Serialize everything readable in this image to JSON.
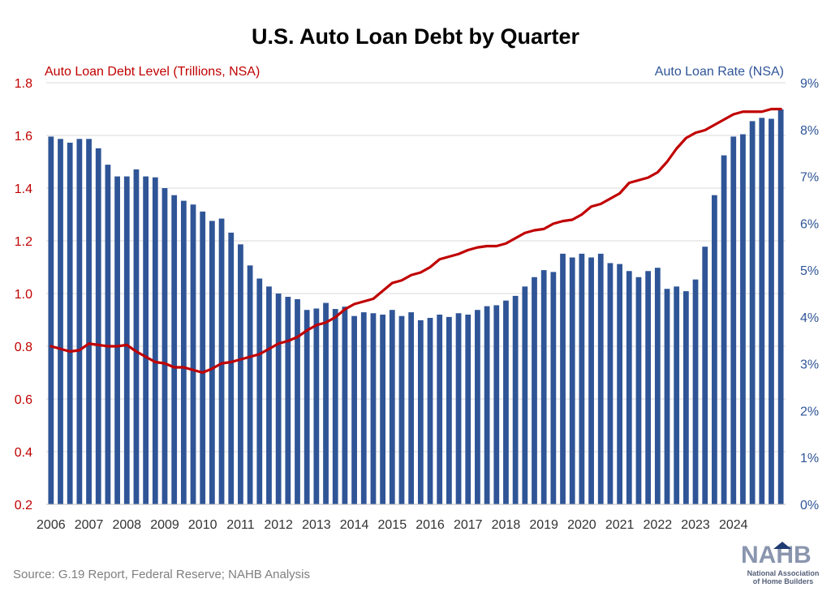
{
  "chart_data": {
    "type": "bar+line",
    "title": "U.S. Auto Loan Debt by Quarter",
    "left_axis_label": "Auto Loan Debt Level (Trillions, NSA)",
    "right_axis_label": "Auto Loan Rate (NSA)",
    "source": "Source: G.19 Report, Federal Reserve; NAHB Analysis",
    "x_ticks": [
      "2006",
      "2007",
      "2008",
      "2009",
      "2010",
      "2011",
      "2012",
      "2013",
      "2014",
      "2015",
      "2016",
      "2017",
      "2018",
      "2019",
      "2020",
      "2021",
      "2022",
      "2023",
      "2024"
    ],
    "left_ticks": [
      "0.2",
      "0.4",
      "0.6",
      "0.8",
      "1.0",
      "1.2",
      "1.4",
      "1.6",
      "1.8"
    ],
    "right_ticks": [
      "0%",
      "1%",
      "2%",
      "3%",
      "4%",
      "5%",
      "6%",
      "7%",
      "8%",
      "9%"
    ],
    "left_range": [
      0.2,
      1.8
    ],
    "right_range": [
      0,
      9
    ],
    "grid": true,
    "series": [
      {
        "name": "Auto Loan Rate (NSA)",
        "type": "bar",
        "axis": "right",
        "color": "#2f5597",
        "values": [
          7.85,
          7.8,
          7.72,
          7.8,
          7.8,
          7.6,
          7.25,
          7.0,
          7.0,
          7.15,
          7.0,
          6.98,
          6.75,
          6.6,
          6.48,
          6.4,
          6.25,
          6.05,
          6.1,
          5.8,
          5.55,
          5.1,
          4.82,
          4.65,
          4.5,
          4.43,
          4.38,
          4.15,
          4.18,
          4.3,
          4.17,
          4.22,
          4.02,
          4.1,
          4.08,
          4.05,
          4.15,
          4.02,
          4.1,
          3.93,
          3.98,
          4.05,
          4.0,
          4.08,
          4.05,
          4.15,
          4.23,
          4.25,
          4.35,
          4.45,
          4.65,
          4.85,
          5.0,
          4.96,
          5.35,
          5.27,
          5.35,
          5.27,
          5.35,
          5.15,
          5.13,
          4.98,
          4.85,
          4.98,
          5.05,
          4.6,
          4.65,
          4.55,
          4.8,
          5.5,
          6.6,
          7.45,
          7.85,
          7.9,
          8.18,
          8.25,
          8.23,
          8.43
        ]
      },
      {
        "name": "Auto Loan Debt Level (Trillions, NSA)",
        "type": "line",
        "axis": "left",
        "color": "#c00000",
        "values": [
          0.8,
          0.79,
          0.78,
          0.785,
          0.81,
          0.805,
          0.8,
          0.8,
          0.805,
          0.78,
          0.76,
          0.74,
          0.735,
          0.72,
          0.72,
          0.71,
          0.7,
          0.715,
          0.735,
          0.74,
          0.75,
          0.76,
          0.77,
          0.79,
          0.81,
          0.82,
          0.835,
          0.86,
          0.88,
          0.89,
          0.91,
          0.94,
          0.96,
          0.97,
          0.98,
          1.01,
          1.04,
          1.05,
          1.07,
          1.08,
          1.1,
          1.13,
          1.14,
          1.15,
          1.165,
          1.175,
          1.18,
          1.18,
          1.19,
          1.21,
          1.23,
          1.24,
          1.245,
          1.265,
          1.275,
          1.28,
          1.3,
          1.33,
          1.34,
          1.36,
          1.38,
          1.42,
          1.43,
          1.44,
          1.46,
          1.5,
          1.55,
          1.59,
          1.61,
          1.62,
          1.64,
          1.66,
          1.68,
          1.69,
          1.69,
          1.69,
          1.7,
          1.7
        ]
      }
    ]
  },
  "branding": {
    "logo_text": "NAHB",
    "logo_subtext": "National Association of Home Builders"
  }
}
